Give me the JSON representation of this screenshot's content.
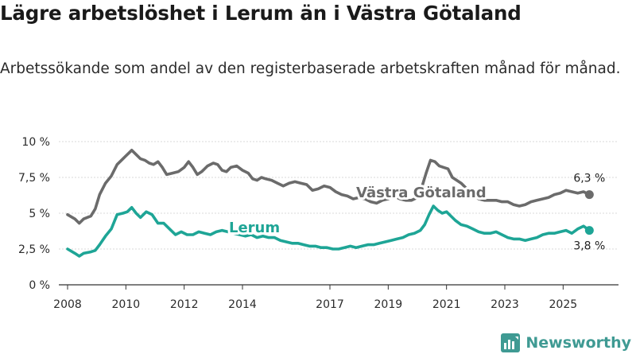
{
  "title": "Lägre arbetslöshet i Lerum än i Västra Götaland",
  "subtitle": "Arbetssökande som andel av den registerbaserade arbetskraften månad för månad.",
  "brand": {
    "name": "Newsworthy",
    "icon": "newsworthy-logo-icon",
    "color": "#3f9a93"
  },
  "chart_data": {
    "type": "line",
    "title": "Lägre arbetslöshet i Lerum än i Västra Götaland",
    "xlabel": "",
    "ylabel": "",
    "ylim": [
      0,
      10
    ],
    "xlim": [
      2007.7,
      2026.9
    ],
    "yticks": [
      0,
      2.5,
      5,
      7.5,
      10
    ],
    "ytick_labels": [
      "0 %",
      "2,5 %",
      "5 %",
      "7,5 %",
      "10 %"
    ],
    "xticks": [
      2008,
      2010,
      2012,
      2014,
      2017,
      2019,
      2021,
      2023,
      2025
    ],
    "xtick_labels": [
      "2008",
      "2010",
      "2012",
      "2014",
      "2017",
      "2019",
      "2021",
      "2023",
      "2025"
    ],
    "grid": "horizontal",
    "series": [
      {
        "name": "Västra Götaland",
        "color": "#6b6b6b",
        "end_label": "6,3 %",
        "x": [
          2008.0,
          2008.25,
          2008.4,
          2008.55,
          2008.8,
          2008.95,
          2009.1,
          2009.3,
          2009.5,
          2009.7,
          2009.9,
          2010.0,
          2010.1,
          2010.2,
          2010.35,
          2010.5,
          2010.65,
          2010.8,
          2010.95,
          2011.1,
          2011.25,
          2011.4,
          2011.6,
          2011.8,
          2012.0,
          2012.15,
          2012.3,
          2012.45,
          2012.6,
          2012.8,
          2013.0,
          2013.15,
          2013.3,
          2013.45,
          2013.6,
          2013.8,
          2014.0,
          2014.2,
          2014.35,
          2014.5,
          2014.65,
          2014.8,
          2015.0,
          2015.2,
          2015.4,
          2015.6,
          2015.8,
          2016.0,
          2016.2,
          2016.4,
          2016.6,
          2016.8,
          2017.0,
          2017.2,
          2017.4,
          2017.6,
          2017.8,
          2018.0,
          2018.2,
          2018.4,
          2018.6,
          2018.8,
          2019.0,
          2019.2,
          2019.4,
          2019.6,
          2019.8,
          2020.0,
          2020.15,
          2020.3,
          2020.45,
          2020.6,
          2020.75,
          2020.9,
          2021.05,
          2021.2,
          2021.35,
          2021.5,
          2021.65,
          2021.8,
          2021.95,
          2022.1,
          2022.3,
          2022.5,
          2022.7,
          2022.9,
          2023.1,
          2023.3,
          2023.5,
          2023.7,
          2023.9,
          2024.1,
          2024.3,
          2024.5,
          2024.7,
          2024.9,
          2025.1,
          2025.3,
          2025.5,
          2025.7,
          2025.9
        ],
        "values": [
          4.9,
          4.6,
          4.3,
          4.6,
          4.8,
          5.3,
          6.3,
          7.1,
          7.6,
          8.4,
          8.8,
          9.0,
          9.2,
          9.4,
          9.1,
          8.8,
          8.7,
          8.5,
          8.4,
          8.6,
          8.2,
          7.7,
          7.8,
          7.9,
          8.2,
          8.6,
          8.2,
          7.7,
          7.9,
          8.3,
          8.5,
          8.4,
          8.0,
          7.9,
          8.2,
          8.3,
          8.0,
          7.8,
          7.4,
          7.3,
          7.5,
          7.4,
          7.3,
          7.1,
          6.9,
          7.1,
          7.2,
          7.1,
          7.0,
          6.6,
          6.7,
          6.9,
          6.8,
          6.5,
          6.3,
          6.2,
          6.0,
          6.1,
          6.0,
          5.8,
          5.7,
          5.9,
          6.0,
          6.2,
          6.0,
          5.9,
          5.9,
          6.1,
          6.8,
          7.8,
          8.7,
          8.6,
          8.3,
          8.2,
          8.1,
          7.5,
          7.3,
          7.1,
          6.8,
          6.5,
          6.3,
          6.0,
          5.9,
          5.9,
          5.9,
          5.8,
          5.8,
          5.6,
          5.5,
          5.6,
          5.8,
          5.9,
          6.0,
          6.1,
          6.3,
          6.4,
          6.6,
          6.5,
          6.4,
          6.5,
          6.3
        ]
      },
      {
        "name": "Lerum",
        "color": "#1ea596",
        "end_label": "3,8 %",
        "x": [
          2008.0,
          2008.25,
          2008.4,
          2008.55,
          2008.8,
          2008.95,
          2009.1,
          2009.3,
          2009.5,
          2009.7,
          2009.9,
          2010.05,
          2010.2,
          2010.35,
          2010.5,
          2010.7,
          2010.9,
          2011.1,
          2011.3,
          2011.5,
          2011.7,
          2011.9,
          2012.1,
          2012.3,
          2012.5,
          2012.7,
          2012.9,
          2013.1,
          2013.3,
          2013.5,
          2013.7,
          2013.9,
          2014.1,
          2014.3,
          2014.5,
          2014.7,
          2014.9,
          2015.1,
          2015.3,
          2015.5,
          2015.7,
          2015.9,
          2016.1,
          2016.3,
          2016.5,
          2016.7,
          2016.9,
          2017.1,
          2017.3,
          2017.5,
          2017.7,
          2017.9,
          2018.1,
          2018.3,
          2018.5,
          2018.7,
          2018.9,
          2019.1,
          2019.3,
          2019.5,
          2019.7,
          2019.9,
          2020.1,
          2020.25,
          2020.4,
          2020.55,
          2020.7,
          2020.85,
          2021.0,
          2021.15,
          2021.3,
          2021.5,
          2021.7,
          2021.9,
          2022.1,
          2022.3,
          2022.5,
          2022.7,
          2022.9,
          2023.1,
          2023.3,
          2023.5,
          2023.7,
          2023.9,
          2024.1,
          2024.3,
          2024.5,
          2024.7,
          2024.9,
          2025.1,
          2025.3,
          2025.5,
          2025.7,
          2025.9
        ],
        "values": [
          2.5,
          2.2,
          2.0,
          2.2,
          2.3,
          2.4,
          2.8,
          3.4,
          3.9,
          4.9,
          5.0,
          5.1,
          5.4,
          5.0,
          4.7,
          5.1,
          4.9,
          4.3,
          4.3,
          3.9,
          3.5,
          3.7,
          3.5,
          3.5,
          3.7,
          3.6,
          3.5,
          3.7,
          3.8,
          3.7,
          3.6,
          3.5,
          3.4,
          3.5,
          3.3,
          3.4,
          3.3,
          3.3,
          3.1,
          3.0,
          2.9,
          2.9,
          2.8,
          2.7,
          2.7,
          2.6,
          2.6,
          2.5,
          2.5,
          2.6,
          2.7,
          2.6,
          2.7,
          2.8,
          2.8,
          2.9,
          3.0,
          3.1,
          3.2,
          3.3,
          3.5,
          3.6,
          3.8,
          4.2,
          4.9,
          5.5,
          5.2,
          5.0,
          5.1,
          4.8,
          4.5,
          4.2,
          4.1,
          3.9,
          3.7,
          3.6,
          3.6,
          3.7,
          3.5,
          3.3,
          3.2,
          3.2,
          3.1,
          3.2,
          3.3,
          3.5,
          3.6,
          3.6,
          3.7,
          3.8,
          3.6,
          3.9,
          4.1,
          3.8
        ]
      }
    ],
    "series_labels": [
      {
        "text": "Västra Götaland",
        "series": "Västra Götaland"
      },
      {
        "text": "Lerum",
        "series": "Lerum"
      }
    ]
  }
}
